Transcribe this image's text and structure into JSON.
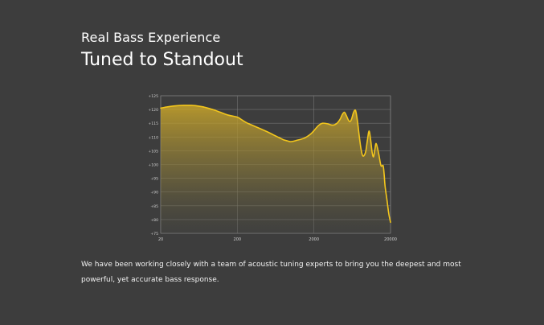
{
  "header": {
    "eyebrow": "Real Bass Experience",
    "headline": "Tuned to Standout"
  },
  "description": "We have been working closely with a team of acoustic tuning experts to bring you the deepest and most powerful, yet accurate bass response.",
  "colors": {
    "background": "#3d3d3d",
    "line": "#f3c61c",
    "grid": "#8a8a8a",
    "tick_text": "#cfcfcf"
  },
  "chart_data": {
    "type": "area",
    "x_scale": "log",
    "xlim": [
      20,
      20000
    ],
    "ylim": [
      75,
      125
    ],
    "grid": true,
    "x_ticks": [
      20,
      200,
      2000,
      20000
    ],
    "x_tick_labels": [
      "20",
      "200",
      "2000",
      "20000"
    ],
    "y_ticks": [
      75,
      80,
      85,
      90,
      95,
      100,
      105,
      110,
      115,
      120,
      125
    ],
    "y_tick_labels": [
      "+75",
      "+80",
      "+85",
      "+90",
      "+95",
      "+100",
      "+105",
      "+110",
      "+115",
      "+120",
      "+125"
    ],
    "series": [
      {
        "x": [
          20,
          25,
          30,
          40,
          50,
          60,
          70,
          80,
          100,
          120,
          150,
          200,
          230,
          260,
          300,
          400,
          500,
          600,
          700,
          800,
          900,
          1000,
          1200,
          1500,
          1800,
          2000,
          2300,
          2600,
          3000,
          3500,
          4000,
          4400,
          4700,
          5000,
          5300,
          5600,
          5900,
          6200,
          6600,
          7000,
          7400,
          7800,
          8200,
          8600,
          9000,
          9500,
          10000,
          10500,
          11000,
          11500,
          12000,
          12500,
          13000,
          14000,
          15000,
          16000,
          16500,
          17000,
          18000,
          19000,
          20000
        ],
        "y": [
          120.5,
          121.0,
          121.3,
          121.5,
          121.5,
          121.3,
          121.0,
          120.6,
          119.8,
          119.0,
          118.0,
          117.2,
          116.2,
          115.3,
          114.5,
          113.0,
          111.8,
          110.7,
          109.8,
          109.0,
          108.6,
          108.3,
          108.8,
          109.6,
          111.0,
          112.3,
          114.2,
          115.0,
          114.8,
          114.3,
          115.0,
          116.5,
          118.2,
          119.0,
          117.8,
          116.3,
          115.6,
          116.5,
          119.0,
          119.6,
          115.8,
          110.5,
          106.0,
          103.4,
          103.2,
          104.8,
          109.0,
          112.2,
          109.0,
          104.5,
          102.8,
          105.5,
          107.6,
          104.0,
          99.6,
          99.6,
          96.5,
          92.0,
          87.0,
          82.0,
          79.0
        ]
      }
    ]
  }
}
